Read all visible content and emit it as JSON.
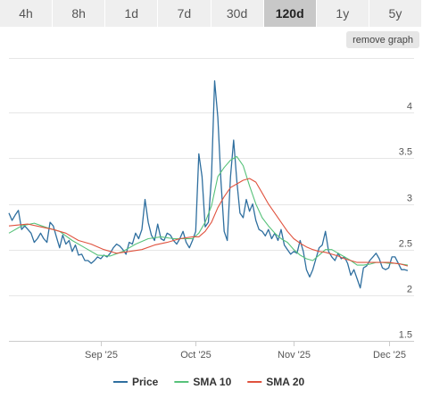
{
  "range_tabs": [
    {
      "label": "4h",
      "active": false
    },
    {
      "label": "8h",
      "active": false
    },
    {
      "label": "1d",
      "active": false
    },
    {
      "label": "7d",
      "active": false
    },
    {
      "label": "30d",
      "active": false
    },
    {
      "label": "120d",
      "active": true
    },
    {
      "label": "1y",
      "active": false
    },
    {
      "label": "5y",
      "active": false
    }
  ],
  "remove_graph_label": "remove graph",
  "chart_data": {
    "type": "line",
    "x_ticks": [
      {
        "label": "Sep '25",
        "x": 29
      },
      {
        "label": "Oct '25",
        "x": 59
      },
      {
        "label": "Nov '25",
        "x": 90
      },
      {
        "label": "Dec '25",
        "x": 120
      }
    ],
    "y_ticks": [
      1.5,
      2,
      2.5,
      3,
      3.5,
      4
    ],
    "ylim": [
      1.5,
      4.6
    ],
    "xlim": [
      0,
      128
    ],
    "series": [
      {
        "name": "Price",
        "color": "#2f6f9f",
        "values": [
          [
            0,
            2.9
          ],
          [
            1,
            2.82
          ],
          [
            2,
            2.88
          ],
          [
            3,
            2.93
          ],
          [
            4,
            2.72
          ],
          [
            5,
            2.76
          ],
          [
            6,
            2.72
          ],
          [
            7,
            2.68
          ],
          [
            8,
            2.58
          ],
          [
            9,
            2.62
          ],
          [
            10,
            2.68
          ],
          [
            11,
            2.62
          ],
          [
            12,
            2.58
          ],
          [
            13,
            2.8
          ],
          [
            14,
            2.76
          ],
          [
            15,
            2.64
          ],
          [
            16,
            2.52
          ],
          [
            17,
            2.66
          ],
          [
            18,
            2.56
          ],
          [
            19,
            2.6
          ],
          [
            20,
            2.48
          ],
          [
            21,
            2.55
          ],
          [
            22,
            2.44
          ],
          [
            23,
            2.45
          ],
          [
            24,
            2.38
          ],
          [
            25,
            2.38
          ],
          [
            26,
            2.35
          ],
          [
            27,
            2.38
          ],
          [
            28,
            2.42
          ],
          [
            29,
            2.4
          ],
          [
            30,
            2.44
          ],
          [
            31,
            2.42
          ],
          [
            32,
            2.46
          ],
          [
            33,
            2.52
          ],
          [
            34,
            2.56
          ],
          [
            35,
            2.54
          ],
          [
            36,
            2.5
          ],
          [
            37,
            2.45
          ],
          [
            38,
            2.58
          ],
          [
            39,
            2.56
          ],
          [
            40,
            2.68
          ],
          [
            41,
            2.62
          ],
          [
            42,
            2.72
          ],
          [
            43,
            3.05
          ],
          [
            44,
            2.8
          ],
          [
            45,
            2.66
          ],
          [
            46,
            2.6
          ],
          [
            47,
            2.78
          ],
          [
            48,
            2.62
          ],
          [
            49,
            2.6
          ],
          [
            50,
            2.68
          ],
          [
            51,
            2.66
          ],
          [
            52,
            2.6
          ],
          [
            53,
            2.56
          ],
          [
            54,
            2.62
          ],
          [
            55,
            2.7
          ],
          [
            56,
            2.58
          ],
          [
            57,
            2.52
          ],
          [
            58,
            2.6
          ],
          [
            59,
            2.7
          ],
          [
            60,
            3.55
          ],
          [
            61,
            3.3
          ],
          [
            62,
            2.75
          ],
          [
            63,
            2.8
          ],
          [
            64,
            3.3
          ],
          [
            65,
            4.35
          ],
          [
            66,
            3.95
          ],
          [
            67,
            3.25
          ],
          [
            68,
            2.7
          ],
          [
            69,
            2.6
          ],
          [
            70,
            3.3
          ],
          [
            71,
            3.7
          ],
          [
            72,
            3.25
          ],
          [
            73,
            2.9
          ],
          [
            74,
            2.85
          ],
          [
            75,
            3.05
          ],
          [
            76,
            2.92
          ],
          [
            77,
            3.0
          ],
          [
            78,
            2.82
          ],
          [
            79,
            2.72
          ],
          [
            80,
            2.7
          ],
          [
            81,
            2.65
          ],
          [
            82,
            2.72
          ],
          [
            83,
            2.62
          ],
          [
            84,
            2.68
          ],
          [
            85,
            2.6
          ],
          [
            86,
            2.72
          ],
          [
            87,
            2.55
          ],
          [
            88,
            2.5
          ],
          [
            89,
            2.45
          ],
          [
            90,
            2.48
          ],
          [
            91,
            2.46
          ],
          [
            92,
            2.6
          ],
          [
            93,
            2.48
          ],
          [
            94,
            2.28
          ],
          [
            95,
            2.2
          ],
          [
            96,
            2.28
          ],
          [
            97,
            2.4
          ],
          [
            98,
            2.52
          ],
          [
            99,
            2.55
          ],
          [
            100,
            2.7
          ],
          [
            101,
            2.48
          ],
          [
            102,
            2.42
          ],
          [
            103,
            2.38
          ],
          [
            104,
            2.46
          ],
          [
            105,
            2.4
          ],
          [
            106,
            2.42
          ],
          [
            107,
            2.35
          ],
          [
            108,
            2.22
          ],
          [
            109,
            2.28
          ],
          [
            110,
            2.18
          ],
          [
            111,
            2.08
          ],
          [
            112,
            2.3
          ],
          [
            113,
            2.32
          ],
          [
            114,
            2.38
          ],
          [
            115,
            2.42
          ],
          [
            116,
            2.46
          ],
          [
            117,
            2.4
          ],
          [
            118,
            2.3
          ],
          [
            119,
            2.28
          ],
          [
            120,
            2.3
          ],
          [
            121,
            2.42
          ],
          [
            122,
            2.42
          ],
          [
            123,
            2.35
          ],
          [
            124,
            2.28
          ],
          [
            125,
            2.28
          ],
          [
            126,
            2.27
          ]
        ]
      },
      {
        "name": "SMA 10",
        "color": "#57c27a",
        "values": [
          [
            0,
            2.68
          ],
          [
            4,
            2.76
          ],
          [
            8,
            2.79
          ],
          [
            12,
            2.74
          ],
          [
            16,
            2.7
          ],
          [
            20,
            2.6
          ],
          [
            24,
            2.52
          ],
          [
            28,
            2.44
          ],
          [
            32,
            2.43
          ],
          [
            36,
            2.48
          ],
          [
            40,
            2.56
          ],
          [
            44,
            2.62
          ],
          [
            48,
            2.64
          ],
          [
            52,
            2.62
          ],
          [
            56,
            2.62
          ],
          [
            58,
            2.62
          ],
          [
            60,
            2.68
          ],
          [
            62,
            2.8
          ],
          [
            64,
            2.98
          ],
          [
            66,
            3.3
          ],
          [
            68,
            3.4
          ],
          [
            70,
            3.48
          ],
          [
            72,
            3.52
          ],
          [
            74,
            3.42
          ],
          [
            76,
            3.2
          ],
          [
            78,
            3.0
          ],
          [
            80,
            2.85
          ],
          [
            82,
            2.76
          ],
          [
            84,
            2.68
          ],
          [
            86,
            2.62
          ],
          [
            88,
            2.58
          ],
          [
            90,
            2.5
          ],
          [
            92,
            2.44
          ],
          [
            94,
            2.4
          ],
          [
            96,
            2.38
          ],
          [
            98,
            2.44
          ],
          [
            100,
            2.5
          ],
          [
            102,
            2.5
          ],
          [
            104,
            2.46
          ],
          [
            106,
            2.42
          ],
          [
            108,
            2.38
          ],
          [
            110,
            2.33
          ],
          [
            112,
            2.33
          ],
          [
            114,
            2.34
          ],
          [
            116,
            2.36
          ],
          [
            118,
            2.36
          ],
          [
            120,
            2.35
          ],
          [
            122,
            2.35
          ],
          [
            124,
            2.34
          ],
          [
            126,
            2.33
          ]
        ]
      },
      {
        "name": "SMA 20",
        "color": "#e0523e",
        "values": [
          [
            0,
            2.76
          ],
          [
            6,
            2.78
          ],
          [
            10,
            2.75
          ],
          [
            14,
            2.72
          ],
          [
            18,
            2.68
          ],
          [
            22,
            2.6
          ],
          [
            26,
            2.56
          ],
          [
            30,
            2.5
          ],
          [
            34,
            2.46
          ],
          [
            38,
            2.48
          ],
          [
            42,
            2.5
          ],
          [
            46,
            2.55
          ],
          [
            50,
            2.58
          ],
          [
            54,
            2.62
          ],
          [
            58,
            2.64
          ],
          [
            60,
            2.64
          ],
          [
            62,
            2.7
          ],
          [
            64,
            2.8
          ],
          [
            66,
            2.96
          ],
          [
            68,
            3.08
          ],
          [
            70,
            3.18
          ],
          [
            72,
            3.22
          ],
          [
            74,
            3.26
          ],
          [
            76,
            3.28
          ],
          [
            78,
            3.24
          ],
          [
            80,
            3.12
          ],
          [
            82,
            3.0
          ],
          [
            84,
            2.9
          ],
          [
            86,
            2.8
          ],
          [
            88,
            2.7
          ],
          [
            90,
            2.62
          ],
          [
            92,
            2.57
          ],
          [
            94,
            2.53
          ],
          [
            96,
            2.5
          ],
          [
            98,
            2.48
          ],
          [
            100,
            2.47
          ],
          [
            102,
            2.45
          ],
          [
            104,
            2.43
          ],
          [
            106,
            2.4
          ],
          [
            108,
            2.38
          ],
          [
            110,
            2.36
          ],
          [
            112,
            2.36
          ],
          [
            114,
            2.36
          ],
          [
            116,
            2.36
          ],
          [
            118,
            2.36
          ],
          [
            120,
            2.36
          ],
          [
            122,
            2.35
          ],
          [
            124,
            2.34
          ],
          [
            126,
            2.32
          ]
        ]
      }
    ]
  }
}
